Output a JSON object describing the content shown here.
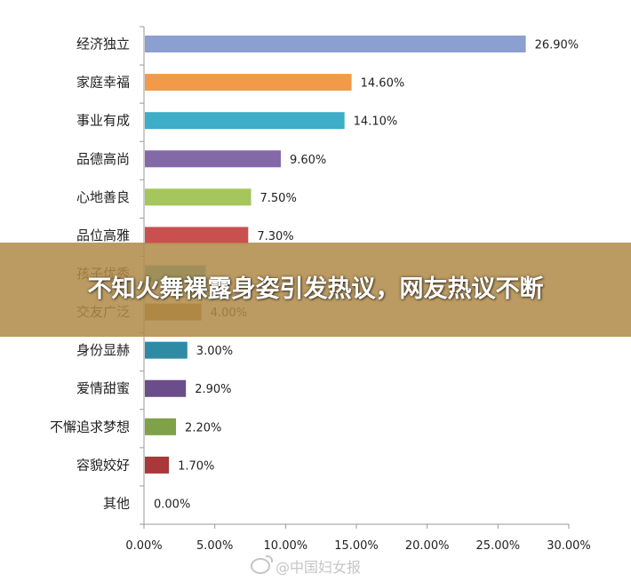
{
  "chart_data": {
    "type": "bar",
    "orientation": "horizontal",
    "categories": [
      "经济独立",
      "家庭幸福",
      "事业有成",
      "品德高尚",
      "心地善良",
      "品位高雅",
      "孩子优秀",
      "交友广泛",
      "身份显赫",
      "爱情甜蜜",
      "不懈追求梦想",
      "容貌姣好",
      "其他"
    ],
    "values": [
      26.9,
      14.6,
      14.1,
      9.6,
      7.5,
      7.3,
      4.3,
      4.0,
      3.0,
      2.9,
      2.2,
      1.7,
      0.0
    ],
    "data_labels": [
      "26.90%",
      "14.60%",
      "14.10%",
      "9.60%",
      "7.50%",
      "7.30%",
      "",
      "4.00%",
      "3.00%",
      "2.90%",
      "2.20%",
      "1.70%",
      "0.00%"
    ],
    "colors": [
      "#8b9fd0",
      "#f39a4a",
      "#3eadc8",
      "#8469a8",
      "#a5c65c",
      "#c9504f",
      "#3eadc8",
      "#b07a35",
      "#2e8ba3",
      "#6a4d8a",
      "#7fa148",
      "#a8383a",
      "#8b9fd0"
    ],
    "xlim": [
      0,
      30
    ],
    "x_ticks": [
      "0.00%",
      "5.00%",
      "10.00%",
      "15.00%",
      "20.00%",
      "25.00%",
      "30.00%"
    ],
    "grid": false
  },
  "banner": {
    "text": "不知火舞裸露身姿引发热议，网友热议不断"
  },
  "watermark": {
    "text": "@中国妇女报"
  }
}
